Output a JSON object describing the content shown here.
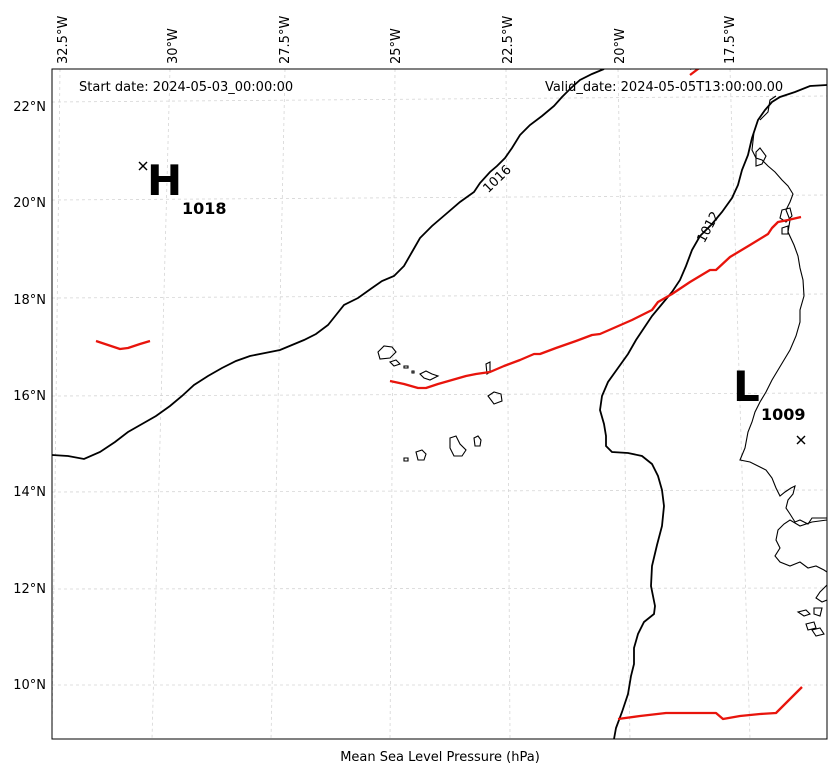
{
  "map": {
    "start_date_label": "Start date: 2024-05-03_00:00:00",
    "valid_date_label": "Valid_date: 2024-05-05T13:00:00.00",
    "xlabel": "Mean Sea Level Pressure (hPa)",
    "lon_ticks": [
      "32.5°W",
      "30°W",
      "27.5°W",
      "25°W",
      "22.5°W",
      "20°W",
      "17.5°W"
    ],
    "lat_ticks": [
      "22°N",
      "20°N",
      "18°N",
      "16°N",
      "14°N",
      "12°N",
      "10°N"
    ],
    "high": {
      "letter": "H",
      "value": "1018"
    },
    "low": {
      "letter": "L",
      "value": "1009"
    },
    "isobar_labels": [
      "1016",
      "1012"
    ],
    "colors": {
      "isobar": "#000000",
      "front": "#e8140c",
      "grid": "#d5d5d5"
    },
    "region": "Cabo Verde and West African coast"
  }
}
